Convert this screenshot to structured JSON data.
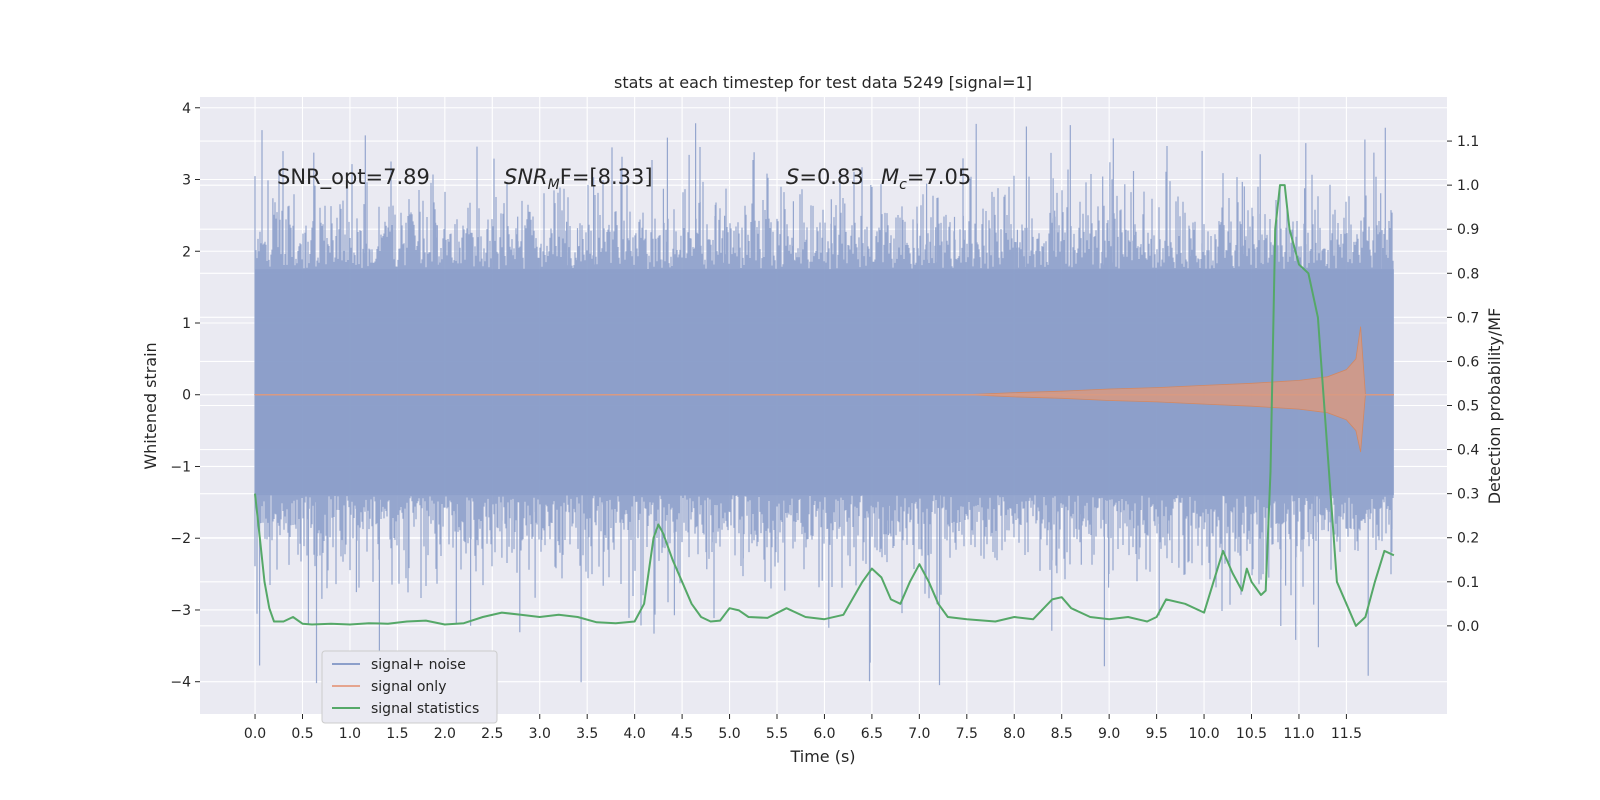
{
  "chart_data": {
    "type": "line",
    "title": "stats at each timestep for test data 5249 [signal=1]",
    "xlabel": "Time (s)",
    "ylabel": "Whitened strain",
    "y2label": "Detection probability/MF",
    "xlim": [
      -0.58,
      12.56
    ],
    "ylim": [
      -4.45,
      4.15
    ],
    "y2lim": [
      -0.2,
      1.2
    ],
    "xticks": [
      0.0,
      0.5,
      1.0,
      1.5,
      2.0,
      2.5,
      3.0,
      3.5,
      4.0,
      4.5,
      5.0,
      5.5,
      6.0,
      6.5,
      7.0,
      7.5,
      8.0,
      8.5,
      9.0,
      9.5,
      10.0,
      10.5,
      11.0,
      11.5
    ],
    "xtick_labels": [
      "0.0",
      "0.5",
      "1.0",
      "1.5",
      "2.0",
      "2.5",
      "3.0",
      "3.5",
      "4.0",
      "4.5",
      "5.0",
      "5.5",
      "6.0",
      "6.5",
      "7.0",
      "7.5",
      "8.0",
      "8.5",
      "9.0",
      "9.5",
      "10.0",
      "10.5",
      "11.0",
      "11.5"
    ],
    "yticks": [
      -4,
      -3,
      -2,
      -1,
      0,
      1,
      2,
      3,
      4
    ],
    "ytick_labels": [
      "−4",
      "−3",
      "−2",
      "−1",
      "0",
      "1",
      "2",
      "3",
      "4"
    ],
    "y2ticks": [
      0.0,
      0.1,
      0.2,
      0.3,
      0.4,
      0.5,
      0.6,
      0.7,
      0.8,
      0.9,
      1.0,
      1.1
    ],
    "y2tick_labels": [
      "0.0",
      "0.1",
      "0.2",
      "0.3",
      "0.4",
      "0.5",
      "0.6",
      "0.7",
      "0.8",
      "0.9",
      "1.0",
      "1.1"
    ],
    "annotations": [
      {
        "text": "SNR_opt=7.89",
        "x": 0.2,
        "y": 3.0
      },
      {
        "text": "SNR",
        "sub": "M",
        "suffix": "F=[8.33]",
        "italic": true,
        "x": 2.6,
        "y": 3.0
      },
      {
        "text": "S",
        "suffix": "=0.83",
        "italic": true,
        "x": 5.6,
        "y": 3.0
      },
      {
        "text": "M",
        "sub": "c",
        "suffix": "=7.05",
        "italic": true,
        "x": 6.6,
        "y": 3.0
      }
    ],
    "legend": {
      "position": "lower-left",
      "entries": [
        {
          "label": "signal+ noise",
          "color": "#8c9fca"
        },
        {
          "label": "signal only",
          "color": "#e5a48e"
        },
        {
          "label": "signal statistics",
          "color": "#55a868"
        }
      ]
    },
    "series": [
      {
        "name": "signal+ noise",
        "axis": "left",
        "color": "#8c9fca",
        "description": "whitened strain, dense noise band",
        "x_range": [
          0.0,
          12.0
        ],
        "band_typical": [
          -1.4,
          1.75
        ],
        "spike_max": 3.8,
        "spike_min": -4.1
      },
      {
        "name": "signal only",
        "axis": "left",
        "color": "#dd8452",
        "description": "chirp envelope",
        "x": [
          0.0,
          7.5,
          8.0,
          8.5,
          9.0,
          9.5,
          10.0,
          10.5,
          11.0,
          11.3,
          11.5,
          11.6,
          11.65,
          11.7,
          12.0
        ],
        "upper": [
          0.0,
          0.0,
          0.03,
          0.05,
          0.08,
          0.1,
          0.13,
          0.16,
          0.2,
          0.25,
          0.35,
          0.5,
          0.95,
          0.0,
          0.0
        ],
        "lower": [
          0.0,
          0.0,
          -0.03,
          -0.05,
          -0.08,
          -0.1,
          -0.13,
          -0.16,
          -0.2,
          -0.25,
          -0.35,
          -0.5,
          -0.8,
          0.0,
          0.0
        ]
      },
      {
        "name": "signal statistics",
        "axis": "right",
        "color": "#55a868",
        "x": [
          0.0,
          0.05,
          0.1,
          0.15,
          0.2,
          0.3,
          0.4,
          0.5,
          0.6,
          0.8,
          1.0,
          1.2,
          1.4,
          1.6,
          1.8,
          2.0,
          2.2,
          2.4,
          2.6,
          2.8,
          3.0,
          3.2,
          3.4,
          3.6,
          3.8,
          4.0,
          4.1,
          4.2,
          4.25,
          4.3,
          4.4,
          4.5,
          4.6,
          4.7,
          4.8,
          4.9,
          5.0,
          5.1,
          5.2,
          5.4,
          5.6,
          5.8,
          6.0,
          6.2,
          6.4,
          6.5,
          6.6,
          6.7,
          6.8,
          6.9,
          7.0,
          7.1,
          7.2,
          7.3,
          7.5,
          7.8,
          8.0,
          8.2,
          8.4,
          8.5,
          8.6,
          8.8,
          9.0,
          9.2,
          9.4,
          9.5,
          9.6,
          9.8,
          10.0,
          10.1,
          10.2,
          10.3,
          10.4,
          10.45,
          10.5,
          10.6,
          10.65,
          10.7,
          10.75,
          10.8,
          10.85,
          10.9,
          11.0,
          11.1,
          11.2,
          11.3,
          11.4,
          11.5,
          11.6,
          11.7,
          11.8,
          11.9,
          12.0
        ],
        "values": [
          0.3,
          0.2,
          0.1,
          0.04,
          0.01,
          0.01,
          0.02,
          0.005,
          0.003,
          0.005,
          0.003,
          0.006,
          0.005,
          0.01,
          0.012,
          0.003,
          0.006,
          0.02,
          0.03,
          0.025,
          0.02,
          0.025,
          0.02,
          0.008,
          0.006,
          0.01,
          0.05,
          0.2,
          0.23,
          0.21,
          0.15,
          0.1,
          0.05,
          0.02,
          0.01,
          0.012,
          0.04,
          0.035,
          0.02,
          0.018,
          0.04,
          0.02,
          0.015,
          0.025,
          0.1,
          0.13,
          0.11,
          0.06,
          0.05,
          0.1,
          0.14,
          0.1,
          0.05,
          0.02,
          0.015,
          0.01,
          0.02,
          0.015,
          0.06,
          0.065,
          0.04,
          0.02,
          0.015,
          0.02,
          0.01,
          0.02,
          0.06,
          0.05,
          0.03,
          0.1,
          0.17,
          0.12,
          0.08,
          0.13,
          0.1,
          0.07,
          0.08,
          0.35,
          0.9,
          1.0,
          1.0,
          0.9,
          0.82,
          0.8,
          0.7,
          0.4,
          0.1,
          0.05,
          0.0,
          0.02,
          0.1,
          0.17,
          0.16
        ]
      }
    ]
  }
}
